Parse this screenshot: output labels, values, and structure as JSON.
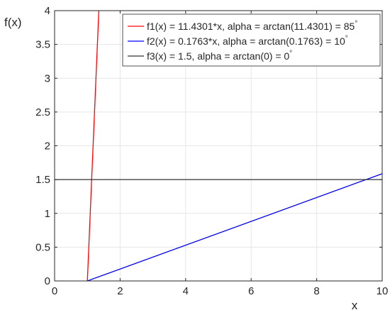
{
  "chart_data": {
    "type": "line",
    "xlabel": "x",
    "ylabel": "f(x)",
    "xlim": [
      0,
      10
    ],
    "ylim": [
      0,
      4
    ],
    "xticks": [
      0,
      2,
      4,
      6,
      8,
      10
    ],
    "yticks": [
      0,
      0.5,
      1,
      1.5,
      2,
      2.5,
      3,
      3.5,
      4
    ],
    "xtick_labels": [
      "0",
      "2",
      "4",
      "6",
      "8",
      "10"
    ],
    "ytick_labels": [
      "0",
      "0.5",
      "1",
      "1.5",
      "2",
      "2.5",
      "3",
      "3.5",
      "4"
    ],
    "grid": true,
    "legend_position": "top-right",
    "series": [
      {
        "name": "f1(x) = 11.4301*x, alpha = arctan(11.4301) = 85",
        "degree_mark": "°",
        "color": "#ff0000",
        "x": [
          1,
          1.35
        ],
        "y": [
          0,
          4
        ]
      },
      {
        "name": "f2(x) = 0.1763*x, alpha = arctan(0.1763) = 10",
        "degree_mark": "°",
        "color": "#0000ff",
        "x": [
          1,
          10
        ],
        "y": [
          0,
          1.587
        ]
      },
      {
        "name": "f3(x) = 1.5,  alpha = arctan(0) = 0",
        "degree_mark": "°",
        "color": "#333333",
        "x": [
          0,
          10
        ],
        "y": [
          1.5,
          1.5
        ]
      }
    ]
  }
}
